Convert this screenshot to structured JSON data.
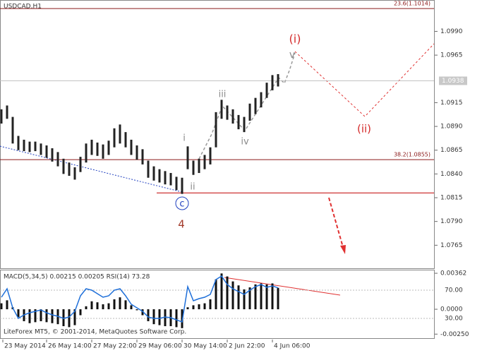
{
  "chart_data": {
    "type": "range_bar",
    "title": "USDCAD,H1",
    "color": "#222222",
    "x": [
      0,
      4,
      8,
      12,
      16,
      20,
      24,
      28,
      32,
      36,
      40,
      44,
      48,
      52,
      56,
      60,
      64,
      68,
      72,
      76,
      80,
      84,
      88,
      92,
      96,
      100,
      104,
      108,
      112,
      116,
      120,
      124,
      128,
      132,
      136,
      140,
      144,
      148,
      152,
      156,
      160,
      164,
      168,
      172,
      176,
      180,
      184,
      188,
      192,
      196
    ],
    "high": [
      1.0908,
      1.0912,
      1.09,
      1.088,
      1.0876,
      1.0874,
      1.0874,
      1.0872,
      1.087,
      1.0867,
      1.0863,
      1.0856,
      1.0852,
      1.0847,
      1.0858,
      1.0872,
      1.0876,
      1.0873,
      1.0871,
      1.0875,
      1.0888,
      1.0892,
      1.0884,
      1.0876,
      1.087,
      1.0866,
      1.0854,
      1.0848,
      1.0845,
      1.0843,
      1.0841,
      1.0837,
      1.0836,
      1.0869,
      1.0854,
      1.0856,
      1.086,
      1.0868,
      1.0905,
      1.0918,
      1.0912,
      1.0908,
      1.0902,
      1.09,
      1.0914,
      1.092,
      1.0926,
      1.0936,
      1.0944,
      1.0945
    ],
    "low": [
      1.0893,
      1.0898,
      1.0872,
      1.0865,
      1.0864,
      1.0863,
      1.0864,
      1.086,
      1.0857,
      1.0853,
      1.0848,
      1.084,
      1.0838,
      1.0834,
      1.0842,
      1.0852,
      1.086,
      1.0859,
      1.0856,
      1.086,
      1.0868,
      1.0872,
      1.0868,
      1.086,
      1.0855,
      1.085,
      1.0836,
      1.0833,
      1.0831,
      1.0829,
      1.0828,
      1.0823,
      1.0819,
      1.0845,
      1.0839,
      1.0841,
      1.0845,
      1.085,
      1.0868,
      1.0898,
      1.0897,
      1.0893,
      1.0887,
      1.0884,
      1.0896,
      1.0903,
      1.091,
      1.092,
      1.0928,
      1.0932
    ],
    "xlim": [
      0,
      306
    ],
    "xticks": [
      {
        "value": 1,
        "label": "23 May 2014"
      },
      {
        "value": 32,
        "label": "26 May 14:00"
      },
      {
        "value": 64,
        "label": "27 May 22:00"
      },
      {
        "value": 96,
        "label": "29 May 06:00"
      },
      {
        "value": 128,
        "label": "30 May 14:00"
      },
      {
        "value": 160,
        "label": "2 Jun 22:00"
      },
      {
        "value": 192,
        "label": "4 Jun 06:00"
      }
    ],
    "ylim": [
      1.074,
      1.1023
    ],
    "yticks": [
      1.0765,
      {
        "value": 1.079,
        "label": "1.0790"
      },
      1.0815,
      {
        "value": 1.084,
        "label": "1.0840"
      },
      1.0865,
      {
        "value": 1.089,
        "label": "1.0890"
      },
      1.0915,
      1.0965,
      {
        "value": 1.099,
        "label": "1.0990"
      }
    ],
    "current_price": 1.0938,
    "levels": [
      {
        "value": 1.1014,
        "label": "23.6(1.1014)",
        "color": "#8b1a1a"
      },
      {
        "value": 1.0855,
        "label": "38.2(1.0855)",
        "color": "#8b1a1a"
      },
      {
        "value": 1.082,
        "color": "#c00000"
      }
    ],
    "annotations": [
      {
        "text": "(i)",
        "color": "#d42a2a"
      },
      {
        "text": "v",
        "color": "#8a8a8a"
      },
      {
        "text": "iii",
        "color": "#8a8a8a"
      },
      {
        "text": "iv",
        "color": "#8a8a8a"
      },
      {
        "text": "i",
        "color": "#8a8a8a"
      },
      {
        "text": "ii",
        "color": "#8a8a8a"
      },
      {
        "text": "c",
        "color": "#1f3fbf"
      },
      {
        "text": "4",
        "color": "#a33a2a"
      },
      {
        "text": "(ii)",
        "color": "#d42a2a"
      }
    ],
    "indicator": {
      "label": "MACD(5,34,5) 0.00215 0.00205 RSI(14) 73.28",
      "histogram": [
        0.0006,
        0.0009,
        0.0002,
        -0.0008,
        -0.0012,
        -0.0014,
        -0.0013,
        -0.0012,
        -0.0013,
        -0.0014,
        -0.0015,
        -0.0017,
        -0.0018,
        -0.0016,
        -0.0006,
        0.0003,
        0.0008,
        0.0007,
        0.0005,
        0.0006,
        0.001,
        0.0012,
        0.0009,
        0.0004,
        -0.0001,
        -0.0006,
        -0.0012,
        -0.0015,
        -0.0016,
        -0.0017,
        -0.0017,
        -0.0018,
        -0.0019,
        0.0002,
        0.0004,
        0.0005,
        0.0006,
        0.001,
        0.003,
        0.0036,
        0.0033,
        0.0028,
        0.0024,
        0.002,
        0.0022,
        0.0025,
        0.0026,
        0.0025,
        0.0026,
        0.00215
      ],
      "histogram_color": "#111111",
      "ylim": [
        -0.00305,
        0.00405
      ],
      "yticks": [
        0.00362,
        {
          "value": 0,
          "label": "0.0000"
        },
        {
          "value": -0.0025,
          "label": "-0.00250"
        }
      ],
      "rsi": [
        60,
        72,
        45,
        30,
        35,
        38,
        40,
        42,
        38,
        35,
        33,
        30,
        32,
        40,
        62,
        72,
        70,
        65,
        60,
        62,
        70,
        72,
        62,
        50,
        45,
        40,
        32,
        30,
        30,
        32,
        31,
        28,
        25,
        75,
        55,
        58,
        60,
        64,
        85,
        90,
        78,
        72,
        68,
        64,
        70,
        75,
        78,
        74,
        76,
        73.28
      ],
      "rsi_color": "#1e6fd9",
      "rsi_lim": [
        0,
        100
      ],
      "rsi_ticks": [
        {
          "value": 70,
          "label": "70.00"
        },
        {
          "value": 30,
          "label": "30.00"
        }
      ]
    },
    "copyright": "LiteForex MT5, © 2001-2014, MetaQuotes Software Corp."
  }
}
